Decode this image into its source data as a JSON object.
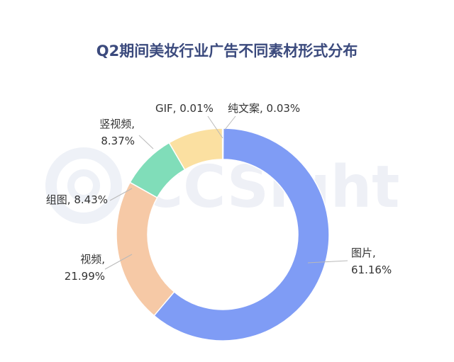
{
  "chart_data": {
    "type": "pie",
    "title": "Q2期间美妆行业广告不同素材形式分布",
    "categories": [
      "图片",
      "视频",
      "组图",
      "竖视频",
      "GIF",
      "纯文案"
    ],
    "values": [
      61.16,
      21.99,
      8.43,
      8.37,
      0.01,
      0.03
    ],
    "value_labels": [
      "61.16%",
      "21.99%",
      "8.43%",
      "8.37%",
      "0.01%",
      "0.03%"
    ],
    "colors": [
      "#7f9cf5",
      "#f6c9a6",
      "#80ddb9",
      "#fbe0a1",
      "#f7b7b7",
      "#c9b4ee"
    ],
    "donut": true,
    "legend": "none"
  },
  "watermark": {
    "text": "CCSight"
  }
}
